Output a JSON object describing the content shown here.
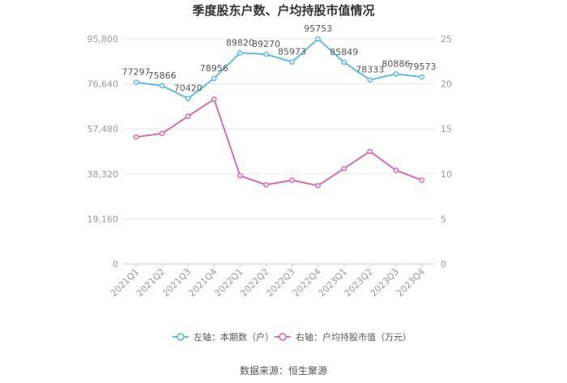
{
  "chart_data": {
    "type": "line",
    "title": "季度股东户数、户均持股市值情况",
    "categories": [
      "2021Q1",
      "2021Q2",
      "2021Q3",
      "2021Q4",
      "2022Q1",
      "2022Q2",
      "2022Q3",
      "2022Q4",
      "2023Q1",
      "2023Q2",
      "2023Q3",
      "2023Q4"
    ],
    "y_left": {
      "min": 0,
      "max": 95800,
      "ticks": [
        "0",
        "19,160",
        "38,320",
        "57,480",
        "76,640",
        "95,800"
      ]
    },
    "y_right": {
      "min": 0,
      "max": 25,
      "ticks": [
        "0",
        "5",
        "10",
        "15",
        "20",
        "25"
      ]
    },
    "series": [
      {
        "name": "左轴：本期数（户）",
        "axis": "left",
        "color": "#4db8e6",
        "values": [
          77297,
          75866,
          70420,
          78956,
          89820,
          89270,
          85973,
          95753,
          85849,
          78333,
          80886,
          79573
        ],
        "labels": [
          "77297",
          "75866",
          "70420",
          "78956",
          "89820",
          "89270",
          "85973",
          "95753",
          "85849",
          "78333",
          "80886",
          "79573"
        ]
      },
      {
        "name": "右轴：户均持股市值（万元）",
        "axis": "right",
        "color": "#d95fb5",
        "values": [
          14.1,
          14.5,
          16.4,
          18.3,
          9.8,
          8.8,
          9.3,
          8.7,
          10.6,
          12.5,
          10.4,
          9.3
        ]
      }
    ],
    "grid": true,
    "legend_position": "bottom"
  },
  "source": "数据来源：恒生聚源"
}
